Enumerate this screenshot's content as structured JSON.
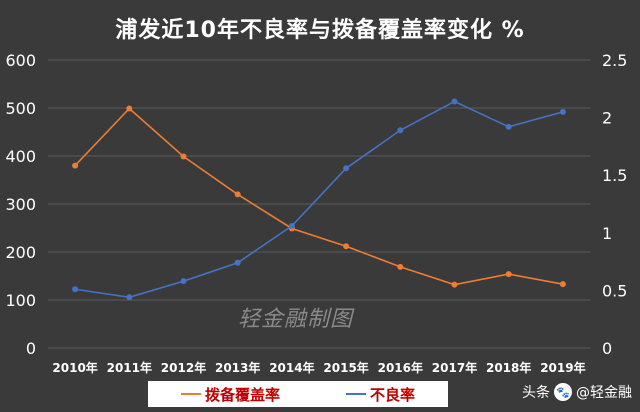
{
  "title": "浦发近10年不良率与拨备覆盖率变化 %",
  "watermark": "轻金融制图",
  "badge": {
    "prefix": "头条",
    "handle": "@轻金融",
    "logo_text": "轻金融"
  },
  "colors": {
    "provision": "#ed7d31",
    "npl": "#4472c4",
    "legend_text": "#c00000"
  },
  "chart_data": {
    "type": "line",
    "title": "浦发近10年不良率与拨备覆盖率变化 %",
    "categories": [
      "2010年",
      "2011年",
      "2012年",
      "2013年",
      "2014年",
      "2015年",
      "2016年",
      "2017年",
      "2018年",
      "2019年"
    ],
    "y_left": {
      "min": 0,
      "max": 600,
      "ticks": [
        0,
        100,
        200,
        300,
        400,
        500,
        600
      ]
    },
    "y_right": {
      "min": 0,
      "max": 2.5,
      "ticks": [
        "0",
        "0.5",
        "1",
        "1.5",
        "2",
        "2.5"
      ]
    },
    "grid": true,
    "legend_position": "bottom",
    "series": [
      {
        "name": "拨备覆盖率",
        "axis": "left",
        "color": "#ed7d31",
        "values": [
          380,
          499,
          399,
          320,
          249,
          212,
          169,
          132,
          154,
          133
        ]
      },
      {
        "name": "不良率",
        "axis": "right",
        "color": "#4472c4",
        "values": [
          0.51,
          0.44,
          0.58,
          0.74,
          1.06,
          1.56,
          1.89,
          2.14,
          1.92,
          2.05
        ]
      }
    ]
  }
}
